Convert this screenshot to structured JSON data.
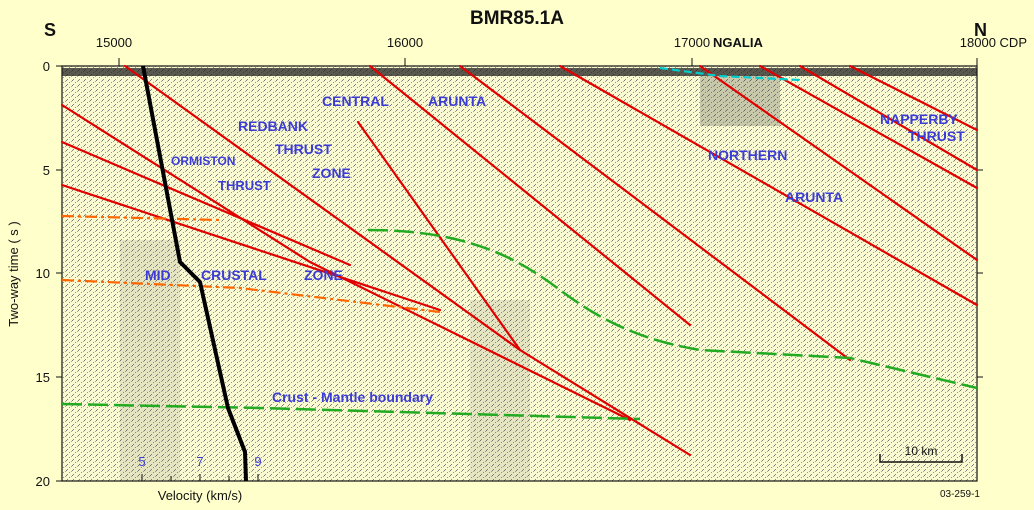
{
  "title": "BMR85.1A",
  "direction_left": "S",
  "direction_right": "N",
  "cdp_ticks": [
    {
      "label": "15000"
    },
    {
      "label": "16000"
    },
    {
      "label": "17000"
    },
    {
      "label": "18000 CDP"
    }
  ],
  "ngalia_label": "NGALIA",
  "y_axis": {
    "label": "Two-way time ( s )",
    "ticks": [
      "0",
      "5",
      "10",
      "15",
      "20"
    ],
    "range": [
      0,
      20
    ]
  },
  "velocity": {
    "label": "Velocity (km/s)",
    "ticks": [
      "5",
      "7",
      "9"
    ]
  },
  "scale_bar": "10 km",
  "figure_code": "03-259-1",
  "zone_labels": {
    "central": "CENTRAL",
    "arunta_top": "ARUNTA",
    "redbank": "REDBANK",
    "thrust_1": "THRUST",
    "zone_1": "ZONE",
    "ormiston": "ORMISTON",
    "thrust_2": "THRUST",
    "mid": "MID",
    "crustal": "CRUSTAL",
    "zone_2": "ZONE",
    "northern": "NORTHERN",
    "arunta_2": "ARUNTA",
    "napperby": "NAPPERBY",
    "thrust_3": "THRUST",
    "moho": "Crust - Mantle boundary"
  },
  "colors": {
    "background": "#ffffcc",
    "fault": "#e00000",
    "moho": "#22aa22",
    "mid_crust": "#ff6600",
    "ngalia_base": "#00cccc",
    "velocity_curve": "#000000",
    "label_blue": "#3b3bd6"
  }
}
